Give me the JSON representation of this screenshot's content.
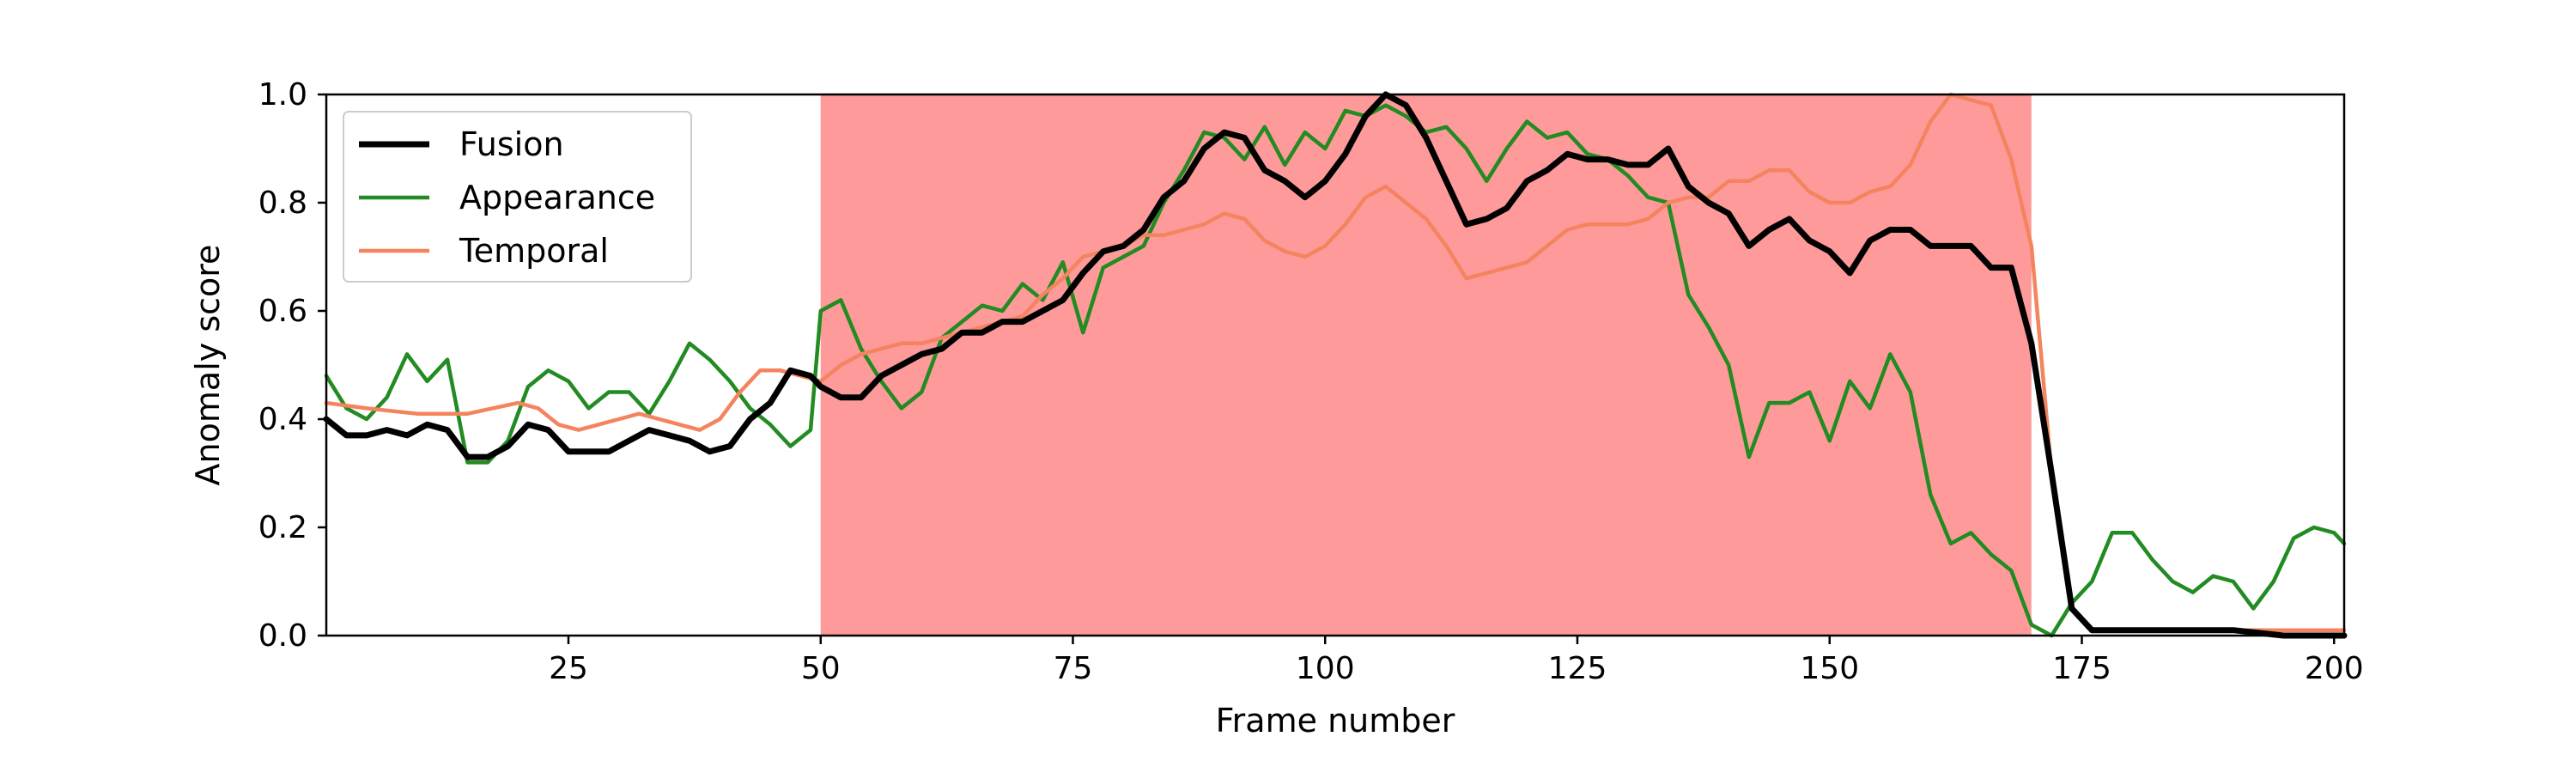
{
  "chart_data": {
    "type": "line",
    "title": "",
    "xlabel": "Frame number",
    "ylabel": "Anomaly score",
    "xlim": [
      1,
      201
    ],
    "ylim": [
      0,
      1.0
    ],
    "xticks": [
      25,
      50,
      75,
      100,
      125,
      150,
      175,
      200
    ],
    "yticks": [
      0.0,
      0.2,
      0.4,
      0.6,
      0.8,
      1.0
    ],
    "ytick_labels": [
      "0.0",
      "0.2",
      "0.4",
      "0.6",
      "0.8",
      "1.0"
    ],
    "grid": false,
    "legend_position": "top-left",
    "shaded_region": {
      "x_start": 50,
      "x_end": 170,
      "color": "#fe9a9a"
    },
    "series": [
      {
        "name": "Fusion",
        "color": "#000000",
        "points": [
          [
            1,
            0.4
          ],
          [
            3,
            0.37
          ],
          [
            5,
            0.37
          ],
          [
            7,
            0.38
          ],
          [
            9,
            0.37
          ],
          [
            11,
            0.39
          ],
          [
            13,
            0.38
          ],
          [
            15,
            0.33
          ],
          [
            17,
            0.33
          ],
          [
            19,
            0.35
          ],
          [
            21,
            0.39
          ],
          [
            23,
            0.38
          ],
          [
            25,
            0.34
          ],
          [
            27,
            0.34
          ],
          [
            29,
            0.34
          ],
          [
            31,
            0.36
          ],
          [
            33,
            0.38
          ],
          [
            35,
            0.37
          ],
          [
            37,
            0.36
          ],
          [
            39,
            0.34
          ],
          [
            41,
            0.35
          ],
          [
            43,
            0.4
          ],
          [
            45,
            0.43
          ],
          [
            47,
            0.49
          ],
          [
            49,
            0.48
          ],
          [
            50,
            0.46
          ],
          [
            52,
            0.44
          ],
          [
            54,
            0.44
          ],
          [
            56,
            0.48
          ],
          [
            58,
            0.5
          ],
          [
            60,
            0.52
          ],
          [
            62,
            0.53
          ],
          [
            64,
            0.56
          ],
          [
            66,
            0.56
          ],
          [
            68,
            0.58
          ],
          [
            70,
            0.58
          ],
          [
            72,
            0.6
          ],
          [
            74,
            0.62
          ],
          [
            76,
            0.67
          ],
          [
            78,
            0.71
          ],
          [
            80,
            0.72
          ],
          [
            82,
            0.75
          ],
          [
            84,
            0.81
          ],
          [
            86,
            0.84
          ],
          [
            88,
            0.9
          ],
          [
            90,
            0.93
          ],
          [
            92,
            0.92
          ],
          [
            94,
            0.86
          ],
          [
            96,
            0.84
          ],
          [
            98,
            0.81
          ],
          [
            100,
            0.84
          ],
          [
            102,
            0.89
          ],
          [
            104,
            0.96
          ],
          [
            106,
            1.0
          ],
          [
            108,
            0.98
          ],
          [
            110,
            0.92
          ],
          [
            112,
            0.84
          ],
          [
            114,
            0.76
          ],
          [
            116,
            0.77
          ],
          [
            118,
            0.79
          ],
          [
            120,
            0.84
          ],
          [
            122,
            0.86
          ],
          [
            124,
            0.89
          ],
          [
            126,
            0.88
          ],
          [
            128,
            0.88
          ],
          [
            130,
            0.87
          ],
          [
            132,
            0.87
          ],
          [
            134,
            0.9
          ],
          [
            136,
            0.83
          ],
          [
            138,
            0.8
          ],
          [
            140,
            0.78
          ],
          [
            142,
            0.72
          ],
          [
            144,
            0.75
          ],
          [
            146,
            0.77
          ],
          [
            148,
            0.73
          ],
          [
            150,
            0.71
          ],
          [
            152,
            0.67
          ],
          [
            154,
            0.73
          ],
          [
            156,
            0.75
          ],
          [
            158,
            0.75
          ],
          [
            160,
            0.72
          ],
          [
            162,
            0.72
          ],
          [
            164,
            0.72
          ],
          [
            166,
            0.68
          ],
          [
            168,
            0.68
          ],
          [
            170,
            0.54
          ],
          [
            172,
            0.3
          ],
          [
            174,
            0.05
          ],
          [
            176,
            0.01
          ],
          [
            180,
            0.01
          ],
          [
            185,
            0.01
          ],
          [
            190,
            0.01
          ],
          [
            195,
            0.0
          ],
          [
            201,
            0.0
          ]
        ]
      },
      {
        "name": "Appearance",
        "color": "#228b22",
        "points": [
          [
            1,
            0.48
          ],
          [
            3,
            0.42
          ],
          [
            5,
            0.4
          ],
          [
            7,
            0.44
          ],
          [
            9,
            0.52
          ],
          [
            11,
            0.47
          ],
          [
            13,
            0.51
          ],
          [
            15,
            0.32
          ],
          [
            17,
            0.32
          ],
          [
            19,
            0.36
          ],
          [
            21,
            0.46
          ],
          [
            23,
            0.49
          ],
          [
            25,
            0.47
          ],
          [
            27,
            0.42
          ],
          [
            29,
            0.45
          ],
          [
            31,
            0.45
          ],
          [
            33,
            0.41
          ],
          [
            35,
            0.47
          ],
          [
            37,
            0.54
          ],
          [
            39,
            0.51
          ],
          [
            41,
            0.47
          ],
          [
            43,
            0.42
          ],
          [
            45,
            0.39
          ],
          [
            47,
            0.35
          ],
          [
            49,
            0.38
          ],
          [
            50,
            0.6
          ],
          [
            52,
            0.62
          ],
          [
            54,
            0.53
          ],
          [
            56,
            0.47
          ],
          [
            58,
            0.42
          ],
          [
            60,
            0.45
          ],
          [
            62,
            0.55
          ],
          [
            64,
            0.58
          ],
          [
            66,
            0.61
          ],
          [
            68,
            0.6
          ],
          [
            70,
            0.65
          ],
          [
            72,
            0.62
          ],
          [
            74,
            0.69
          ],
          [
            76,
            0.56
          ],
          [
            78,
            0.68
          ],
          [
            80,
            0.7
          ],
          [
            82,
            0.72
          ],
          [
            84,
            0.8
          ],
          [
            86,
            0.86
          ],
          [
            88,
            0.93
          ],
          [
            90,
            0.92
          ],
          [
            92,
            0.88
          ],
          [
            94,
            0.94
          ],
          [
            96,
            0.87
          ],
          [
            98,
            0.93
          ],
          [
            100,
            0.9
          ],
          [
            102,
            0.97
          ],
          [
            104,
            0.96
          ],
          [
            106,
            0.98
          ],
          [
            108,
            0.96
          ],
          [
            110,
            0.93
          ],
          [
            112,
            0.94
          ],
          [
            114,
            0.9
          ],
          [
            116,
            0.84
          ],
          [
            118,
            0.9
          ],
          [
            120,
            0.95
          ],
          [
            122,
            0.92
          ],
          [
            124,
            0.93
          ],
          [
            126,
            0.89
          ],
          [
            128,
            0.88
          ],
          [
            130,
            0.85
          ],
          [
            132,
            0.81
          ],
          [
            134,
            0.8
          ],
          [
            136,
            0.63
          ],
          [
            138,
            0.57
          ],
          [
            140,
            0.5
          ],
          [
            142,
            0.33
          ],
          [
            144,
            0.43
          ],
          [
            146,
            0.43
          ],
          [
            148,
            0.45
          ],
          [
            150,
            0.36
          ],
          [
            152,
            0.47
          ],
          [
            154,
            0.42
          ],
          [
            156,
            0.52
          ],
          [
            158,
            0.45
          ],
          [
            160,
            0.26
          ],
          [
            162,
            0.17
          ],
          [
            164,
            0.19
          ],
          [
            166,
            0.15
          ],
          [
            168,
            0.12
          ],
          [
            170,
            0.02
          ],
          [
            172,
            0.0
          ],
          [
            174,
            0.06
          ],
          [
            176,
            0.1
          ],
          [
            178,
            0.19
          ],
          [
            180,
            0.19
          ],
          [
            182,
            0.14
          ],
          [
            184,
            0.1
          ],
          [
            186,
            0.08
          ],
          [
            188,
            0.11
          ],
          [
            190,
            0.1
          ],
          [
            192,
            0.05
          ],
          [
            194,
            0.1
          ],
          [
            196,
            0.18
          ],
          [
            198,
            0.2
          ],
          [
            200,
            0.19
          ],
          [
            201,
            0.17
          ]
        ]
      },
      {
        "name": "Temporal",
        "color": "#f4845f",
        "points": [
          [
            1,
            0.43
          ],
          [
            5,
            0.42
          ],
          [
            10,
            0.41
          ],
          [
            15,
            0.41
          ],
          [
            20,
            0.43
          ],
          [
            22,
            0.42
          ],
          [
            24,
            0.39
          ],
          [
            26,
            0.38
          ],
          [
            28,
            0.39
          ],
          [
            30,
            0.4
          ],
          [
            32,
            0.41
          ],
          [
            34,
            0.4
          ],
          [
            36,
            0.39
          ],
          [
            38,
            0.38
          ],
          [
            40,
            0.4
          ],
          [
            42,
            0.45
          ],
          [
            44,
            0.49
          ],
          [
            46,
            0.49
          ],
          [
            48,
            0.48
          ],
          [
            50,
            0.47
          ],
          [
            52,
            0.5
          ],
          [
            54,
            0.52
          ],
          [
            56,
            0.53
          ],
          [
            58,
            0.54
          ],
          [
            60,
            0.54
          ],
          [
            62,
            0.55
          ],
          [
            64,
            0.56
          ],
          [
            66,
            0.57
          ],
          [
            68,
            0.58
          ],
          [
            70,
            0.59
          ],
          [
            72,
            0.63
          ],
          [
            74,
            0.66
          ],
          [
            76,
            0.7
          ],
          [
            78,
            0.71
          ],
          [
            80,
            0.72
          ],
          [
            82,
            0.74
          ],
          [
            84,
            0.74
          ],
          [
            86,
            0.75
          ],
          [
            88,
            0.76
          ],
          [
            90,
            0.78
          ],
          [
            92,
            0.77
          ],
          [
            94,
            0.73
          ],
          [
            96,
            0.71
          ],
          [
            98,
            0.7
          ],
          [
            100,
            0.72
          ],
          [
            102,
            0.76
          ],
          [
            104,
            0.81
          ],
          [
            106,
            0.83
          ],
          [
            108,
            0.8
          ],
          [
            110,
            0.77
          ],
          [
            112,
            0.72
          ],
          [
            114,
            0.66
          ],
          [
            116,
            0.67
          ],
          [
            118,
            0.68
          ],
          [
            120,
            0.69
          ],
          [
            122,
            0.72
          ],
          [
            124,
            0.75
          ],
          [
            126,
            0.76
          ],
          [
            128,
            0.76
          ],
          [
            130,
            0.76
          ],
          [
            132,
            0.77
          ],
          [
            134,
            0.8
          ],
          [
            136,
            0.81
          ],
          [
            138,
            0.81
          ],
          [
            140,
            0.84
          ],
          [
            142,
            0.84
          ],
          [
            144,
            0.86
          ],
          [
            146,
            0.86
          ],
          [
            148,
            0.82
          ],
          [
            150,
            0.8
          ],
          [
            152,
            0.8
          ],
          [
            154,
            0.82
          ],
          [
            156,
            0.83
          ],
          [
            158,
            0.87
          ],
          [
            160,
            0.95
          ],
          [
            162,
            1.0
          ],
          [
            164,
            0.99
          ],
          [
            166,
            0.98
          ],
          [
            168,
            0.88
          ],
          [
            170,
            0.72
          ],
          [
            172,
            0.3
          ],
          [
            174,
            0.05
          ],
          [
            176,
            0.01
          ],
          [
            180,
            0.01
          ],
          [
            185,
            0.01
          ],
          [
            190,
            0.01
          ],
          [
            195,
            0.01
          ],
          [
            201,
            0.01
          ]
        ]
      }
    ]
  }
}
